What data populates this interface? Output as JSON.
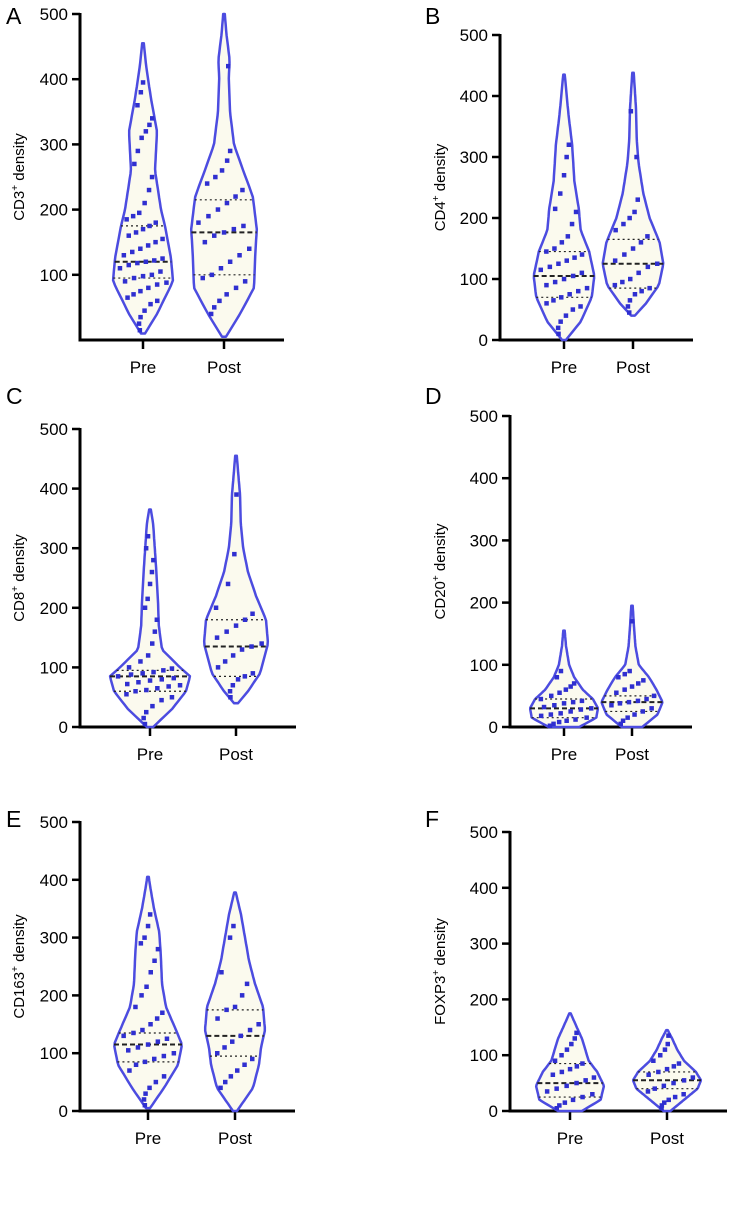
{
  "chart_data": [
    {
      "panel": "A",
      "type": "violin",
      "ylabel": "CD3+ density",
      "ylabel_base": "CD3",
      "ylabel_sup": "+",
      "ylabel_rest": " density",
      "ylim": [
        0,
        500
      ],
      "yticks": [
        "100",
        "200",
        "300",
        "400",
        "500"
      ],
      "categories": [
        "Pre",
        "Post"
      ],
      "series": [
        {
          "name": "Pre",
          "min": 10,
          "max": 455,
          "median": 120,
          "q1": 95,
          "q3": 175,
          "density": [
            [
              10,
              0.05
            ],
            [
              40,
              0.35
            ],
            [
              90,
              0.75
            ],
            [
              125,
              0.7
            ],
            [
              175,
              0.55
            ],
            [
              200,
              0.45
            ],
            [
              260,
              0.3
            ],
            [
              320,
              0.35
            ],
            [
              370,
              0.2
            ],
            [
              420,
              0.08
            ],
            [
              455,
              0.02
            ]
          ],
          "points": [
            15,
            25,
            35,
            45,
            55,
            60,
            65,
            70,
            75,
            80,
            85,
            88,
            90,
            95,
            98,
            100,
            105,
            110,
            115,
            118,
            120,
            122,
            125,
            130,
            135,
            140,
            145,
            150,
            155,
            160,
            165,
            170,
            175,
            180,
            185,
            190,
            195,
            210,
            230,
            250,
            270,
            290,
            310,
            320,
            330,
            340,
            360,
            380,
            395
          ]
        },
        {
          "name": "Post",
          "min": 5,
          "max": 500,
          "median": 165,
          "q1": 100,
          "q3": 215,
          "density": [
            [
              5,
              0.05
            ],
            [
              40,
              0.4
            ],
            [
              80,
              0.75
            ],
            [
              130,
              0.78
            ],
            [
              170,
              0.82
            ],
            [
              220,
              0.72
            ],
            [
              260,
              0.48
            ],
            [
              300,
              0.25
            ],
            [
              350,
              0.15
            ],
            [
              400,
              0.12
            ],
            [
              430,
              0.14
            ],
            [
              470,
              0.06
            ],
            [
              500,
              0.02
            ]
          ],
          "points": [
            40,
            50,
            60,
            70,
            80,
            90,
            95,
            100,
            110,
            120,
            130,
            140,
            150,
            160,
            165,
            170,
            175,
            180,
            190,
            200,
            210,
            220,
            230,
            240,
            250,
            260,
            275,
            290,
            420
          ]
        }
      ]
    },
    {
      "panel": "B",
      "type": "violin",
      "ylabel": "CD4+ density",
      "ylabel_base": "CD4",
      "ylabel_sup": "+",
      "ylabel_rest": " density",
      "ylim": [
        0,
        500
      ],
      "yticks": [
        "0",
        "100",
        "200",
        "300",
        "400",
        "500"
      ],
      "categories": [
        "Pre",
        "Post"
      ],
      "series": [
        {
          "name": "Pre",
          "min": 0,
          "max": 435,
          "median": 105,
          "q1": 70,
          "q3": 145,
          "density": [
            [
              0,
              0.05
            ],
            [
              30,
              0.45
            ],
            [
              70,
              0.75
            ],
            [
              105,
              0.82
            ],
            [
              145,
              0.68
            ],
            [
              180,
              0.45
            ],
            [
              215,
              0.4
            ],
            [
              260,
              0.28
            ],
            [
              320,
              0.22
            ],
            [
              370,
              0.12
            ],
            [
              410,
              0.06
            ],
            [
              435,
              0.02
            ]
          ],
          "points": [
            10,
            20,
            30,
            40,
            50,
            55,
            60,
            65,
            70,
            75,
            80,
            85,
            90,
            95,
            100,
            105,
            110,
            115,
            120,
            125,
            130,
            135,
            140,
            145,
            150,
            160,
            170,
            190,
            210,
            215,
            240,
            270,
            300,
            320
          ]
        },
        {
          "name": "Post",
          "min": 40,
          "max": 438,
          "median": 125,
          "q1": 85,
          "q3": 165,
          "density": [
            [
              40,
              0.05
            ],
            [
              60,
              0.35
            ],
            [
              90,
              0.7
            ],
            [
              125,
              0.82
            ],
            [
              160,
              0.72
            ],
            [
              200,
              0.45
            ],
            [
              240,
              0.28
            ],
            [
              290,
              0.15
            ],
            [
              330,
              0.1
            ],
            [
              380,
              0.08
            ],
            [
              438,
              0.02
            ]
          ],
          "points": [
            45,
            55,
            65,
            75,
            80,
            85,
            90,
            95,
            100,
            110,
            120,
            125,
            130,
            140,
            150,
            160,
            170,
            180,
            190,
            200,
            210,
            230,
            300,
            375
          ]
        }
      ]
    },
    {
      "panel": "C",
      "type": "violin",
      "ylabel": "CD8+ density",
      "ylabel_base": "CD8",
      "ylabel_sup": "+",
      "ylabel_rest": " density",
      "ylim": [
        0,
        500
      ],
      "yticks": [
        "0",
        "100",
        "200",
        "300",
        "400",
        "500"
      ],
      "categories": [
        "Pre",
        "Post"
      ],
      "series": [
        {
          "name": "Pre",
          "min": 0,
          "max": 365,
          "median": 85,
          "q1": 60,
          "q3": 95,
          "density": [
            [
              0,
              0.08
            ],
            [
              30,
              0.55
            ],
            [
              60,
              0.9
            ],
            [
              85,
              1.0
            ],
            [
              100,
              0.75
            ],
            [
              130,
              0.3
            ],
            [
              170,
              0.22
            ],
            [
              210,
              0.2
            ],
            [
              260,
              0.16
            ],
            [
              300,
              0.12
            ],
            [
              340,
              0.08
            ],
            [
              365,
              0.02
            ]
          ],
          "points": [
            5,
            15,
            25,
            35,
            45,
            50,
            55,
            60,
            62,
            65,
            68,
            70,
            72,
            75,
            78,
            80,
            82,
            85,
            88,
            90,
            92,
            95,
            98,
            100,
            110,
            120,
            140,
            160,
            180,
            200,
            215,
            240,
            260,
            280,
            300,
            320
          ]
        },
        {
          "name": "Post",
          "min": 40,
          "max": 455,
          "median": 135,
          "q1": 85,
          "q3": 180,
          "density": [
            [
              40,
              0.05
            ],
            [
              60,
              0.3
            ],
            [
              90,
              0.6
            ],
            [
              140,
              0.8
            ],
            [
              180,
              0.75
            ],
            [
              220,
              0.5
            ],
            [
              260,
              0.3
            ],
            [
              300,
              0.18
            ],
            [
              340,
              0.12
            ],
            [
              390,
              0.1
            ],
            [
              430,
              0.05
            ],
            [
              455,
              0.02
            ]
          ],
          "points": [
            50,
            60,
            70,
            80,
            85,
            90,
            100,
            110,
            120,
            130,
            135,
            140,
            150,
            160,
            170,
            180,
            190,
            200,
            240,
            290,
            390
          ]
        }
      ]
    },
    {
      "panel": "D",
      "type": "violin",
      "ylabel": "CD20+ density",
      "ylabel_base": "CD20",
      "ylabel_sup": "+",
      "ylabel_rest": " density",
      "ylim": [
        0,
        500
      ],
      "yticks": [
        "0",
        "100",
        "200",
        "300",
        "400",
        "500"
      ],
      "categories": [
        "Pre",
        "Post"
      ],
      "series": [
        {
          "name": "Pre",
          "min": 0,
          "max": 155,
          "median": 30,
          "q1": 15,
          "q3": 45,
          "density": [
            [
              0,
              0.45
            ],
            [
              15,
              0.95
            ],
            [
              30,
              1.0
            ],
            [
              45,
              0.85
            ],
            [
              60,
              0.55
            ],
            [
              80,
              0.3
            ],
            [
              100,
              0.15
            ],
            [
              130,
              0.06
            ],
            [
              155,
              0.02
            ]
          ],
          "points": [
            2,
            5,
            8,
            10,
            12,
            15,
            18,
            20,
            22,
            25,
            28,
            30,
            32,
            35,
            38,
            40,
            42,
            45,
            50,
            55,
            60,
            65,
            70,
            80,
            90
          ]
        },
        {
          "name": "Post",
          "min": 0,
          "max": 195,
          "median": 40,
          "q1": 25,
          "q3": 50,
          "density": [
            [
              0,
              0.3
            ],
            [
              20,
              0.75
            ],
            [
              40,
              0.9
            ],
            [
              60,
              0.72
            ],
            [
              80,
              0.5
            ],
            [
              100,
              0.2
            ],
            [
              130,
              0.1
            ],
            [
              160,
              0.06
            ],
            [
              195,
              0.02
            ]
          ],
          "points": [
            5,
            10,
            15,
            20,
            25,
            30,
            35,
            38,
            40,
            42,
            45,
            50,
            55,
            60,
            65,
            70,
            75,
            80,
            85,
            90,
            170
          ]
        }
      ]
    },
    {
      "panel": "E",
      "type": "violin",
      "ylabel": "CD163+ density",
      "ylabel_base": "CD163",
      "ylabel_sup": "+",
      "ylabel_rest": " density",
      "ylim": [
        0,
        500
      ],
      "yticks": [
        "0",
        "100",
        "200",
        "300",
        "400",
        "500"
      ],
      "categories": [
        "Pre",
        "Post"
      ],
      "series": [
        {
          "name": "Pre",
          "min": 5,
          "max": 405,
          "median": 115,
          "q1": 85,
          "q3": 135,
          "density": [
            [
              5,
              0.05
            ],
            [
              40,
              0.4
            ],
            [
              80,
              0.75
            ],
            [
              115,
              0.85
            ],
            [
              140,
              0.7
            ],
            [
              180,
              0.45
            ],
            [
              220,
              0.35
            ],
            [
              270,
              0.32
            ],
            [
              310,
              0.28
            ],
            [
              350,
              0.15
            ],
            [
              390,
              0.05
            ],
            [
              405,
              0.02
            ]
          ],
          "points": [
            10,
            20,
            30,
            40,
            50,
            60,
            70,
            80,
            85,
            90,
            95,
            100,
            105,
            110,
            115,
            120,
            125,
            130,
            135,
            140,
            150,
            160,
            170,
            180,
            200,
            215,
            240,
            260,
            280,
            290,
            300,
            320,
            340
          ]
        },
        {
          "name": "Post",
          "min": 0,
          "max": 378,
          "median": 130,
          "q1": 95,
          "q3": 175,
          "density": [
            [
              0,
              0.05
            ],
            [
              40,
              0.45
            ],
            [
              80,
              0.6
            ],
            [
              110,
              0.65
            ],
            [
              140,
              0.75
            ],
            [
              180,
              0.7
            ],
            [
              220,
              0.5
            ],
            [
              260,
              0.35
            ],
            [
              300,
              0.25
            ],
            [
              340,
              0.15
            ],
            [
              378,
              0.02
            ]
          ],
          "points": [
            40,
            50,
            60,
            70,
            80,
            90,
            100,
            110,
            120,
            130,
            140,
            150,
            160,
            175,
            180,
            200,
            220,
            240,
            300,
            320
          ]
        }
      ]
    },
    {
      "panel": "F",
      "type": "violin",
      "ylabel": "FOXP3+ density",
      "ylabel_base": "FOXP3",
      "ylabel_sup": "+",
      "ylabel_rest": " density",
      "ylim": [
        0,
        500
      ],
      "yticks": [
        "0",
        "100",
        "200",
        "300",
        "400",
        "500"
      ],
      "categories": [
        "Pre",
        "Post"
      ],
      "series": [
        {
          "name": "Pre",
          "min": 0,
          "max": 175,
          "median": 50,
          "q1": 25,
          "q3": 85,
          "density": [
            [
              0,
              0.35
            ],
            [
              20,
              0.9
            ],
            [
              45,
              1.0
            ],
            [
              70,
              0.8
            ],
            [
              90,
              0.55
            ],
            [
              110,
              0.45
            ],
            [
              130,
              0.35
            ],
            [
              150,
              0.2
            ],
            [
              175,
              0.02
            ]
          ],
          "points": [
            5,
            10,
            15,
            20,
            25,
            30,
            35,
            40,
            45,
            50,
            55,
            60,
            65,
            70,
            75,
            80,
            85,
            90,
            100,
            110,
            120,
            130,
            140
          ]
        },
        {
          "name": "Post",
          "min": 0,
          "max": 145,
          "median": 55,
          "q1": 40,
          "q3": 70,
          "density": [
            [
              0,
              0.1
            ],
            [
              20,
              0.5
            ],
            [
              40,
              0.9
            ],
            [
              55,
              1.0
            ],
            [
              70,
              0.85
            ],
            [
              90,
              0.5
            ],
            [
              110,
              0.3
            ],
            [
              130,
              0.15
            ],
            [
              145,
              0.02
            ]
          ],
          "points": [
            5,
            10,
            15,
            20,
            25,
            30,
            35,
            40,
            45,
            50,
            55,
            60,
            65,
            70,
            75,
            80,
            85,
            90,
            100,
            110,
            120,
            135
          ]
        }
      ]
    }
  ]
}
